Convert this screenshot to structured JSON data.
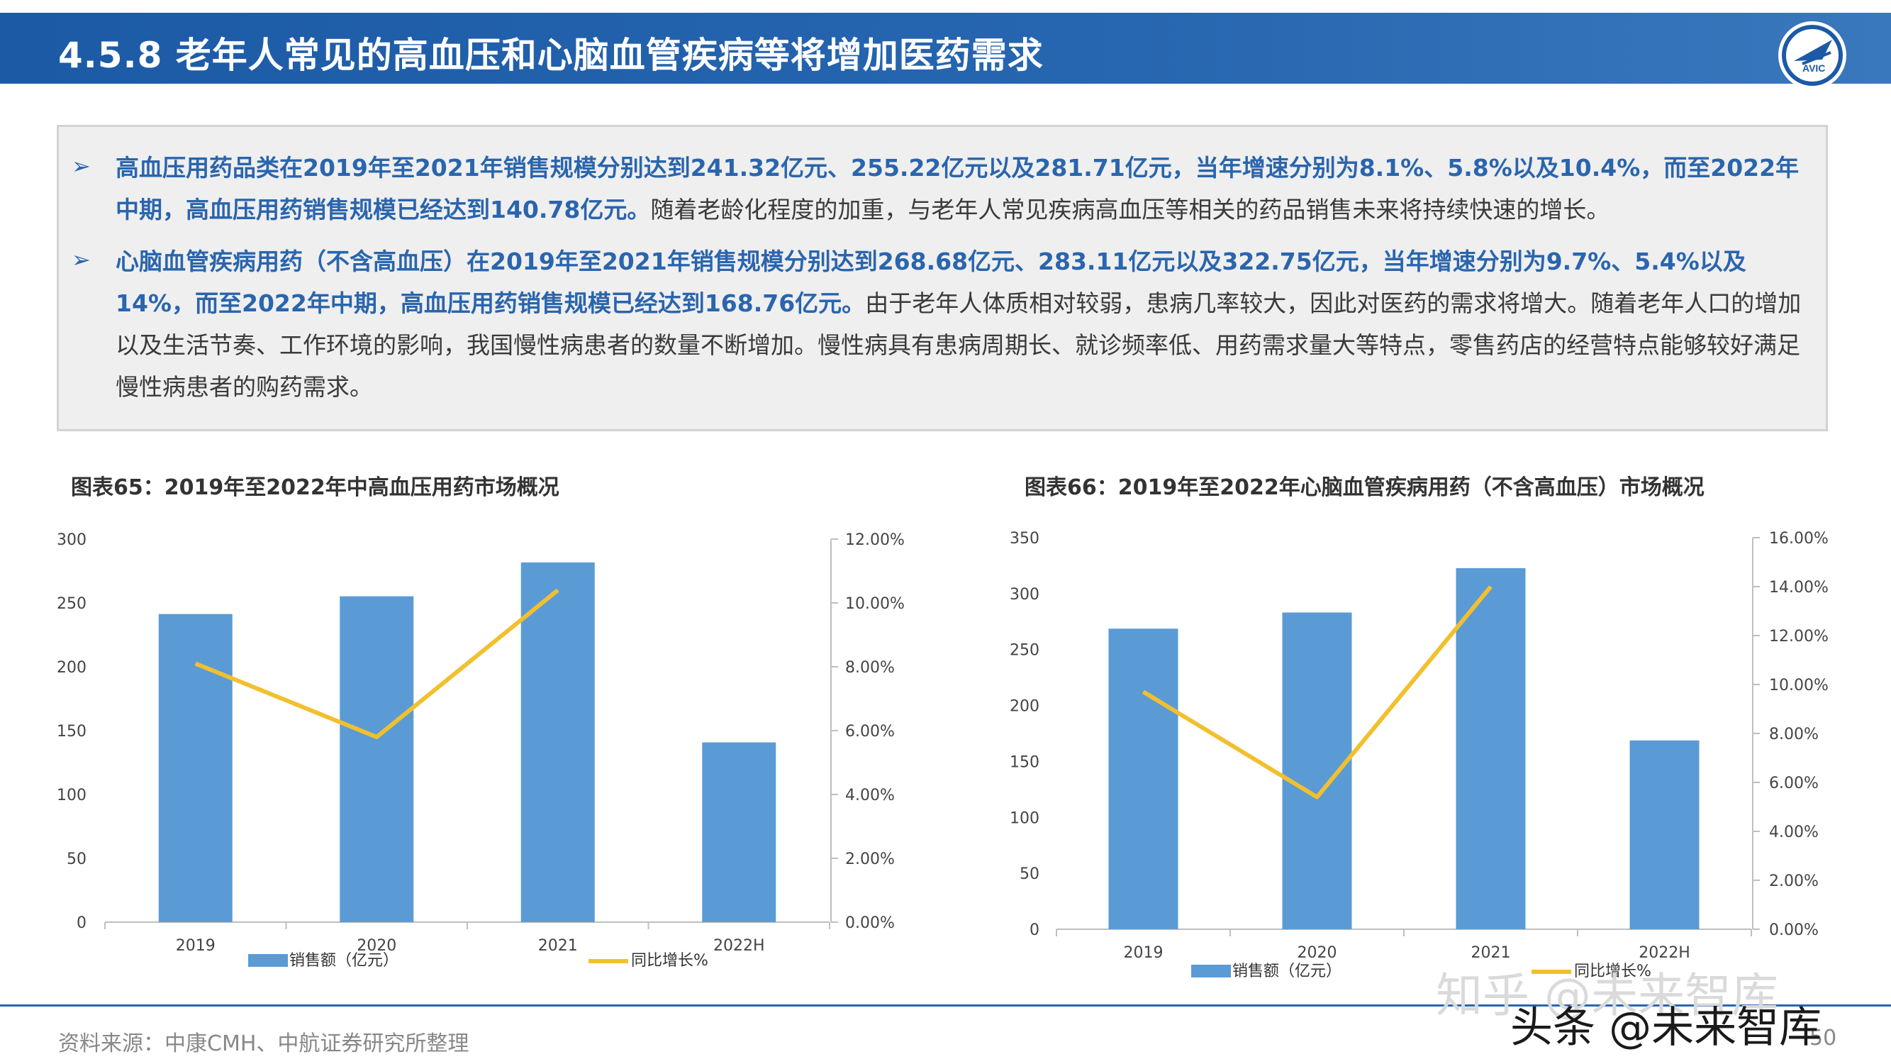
{
  "header": {
    "title": "4.5.8 老年人常见的高血压和心脑血管疾病等将增加医药需求",
    "logo_text": "AVIC"
  },
  "summary": {
    "bullet_symbol": "➢",
    "p1_hl": "高血压用药品类在2019年至2021年销售规模分别达到241.32亿元、255.22亿元以及281.71亿元，当年增速分别为8.1%、5.8%以及10.4%，而至2022年中期，高血压用药销售规模已经达到140.78亿元。",
    "p1_rest": "随着老龄化程度的加重，与老年人常见疾病高血压等相关的药品销售未来将持续快速的增长。",
    "p2_hl": "心脑血管疾病用药（不含高血压）在2019年至2021年销售规模分别达到268.68亿元、283.11亿元以及322.75亿元，当年增速分别为9.7%、5.4%以及14%，而至2022年中期，高血压用药销售规模已经达到168.76亿元。",
    "p2_rest": "由于老年人体质相对较弱，患病几率较大，因此对医药的需求将增大。随着老年人口的增加以及生活节奏、工作环境的影响，我国慢性病患者的数量不断增加。慢性病具有患病周期长、就诊频率低、用药需求量大等特点，零售药店的经营特点能够较好满足慢性病患者的购药需求。"
  },
  "colors": {
    "bar": "#5b9bd5",
    "line": "#f2c02e",
    "accent": "#2a65ad"
  },
  "chart_data": [
    {
      "type": "bar",
      "title": "图表65：2019年至2022年中高血压用药市场概况",
      "categories": [
        "2019",
        "2020",
        "2021",
        "2022H"
      ],
      "series": [
        {
          "name": "销售额（亿元）",
          "type": "bar",
          "axis": "left",
          "values": [
            241.32,
            255.22,
            281.71,
            140.78
          ]
        },
        {
          "name": "同比增长%",
          "type": "line",
          "axis": "right",
          "values": [
            8.1,
            5.8,
            10.4,
            null
          ]
        }
      ],
      "y_left": {
        "min": 0,
        "max": 300,
        "ticks": [
          "0",
          "50",
          "100",
          "150",
          "200",
          "250",
          "300"
        ]
      },
      "y_right": {
        "min": 0,
        "max": 12,
        "ticks": [
          "0.00%",
          "2.00%",
          "4.00%",
          "6.00%",
          "8.00%",
          "10.00%",
          "12.00%"
        ]
      },
      "legend": "bottom"
    },
    {
      "type": "bar",
      "title": "图表66：2019年至2022年心脑血管疾病用药（不含高血压）市场概况",
      "categories": [
        "2019",
        "2020",
        "2021",
        "2022H"
      ],
      "series": [
        {
          "name": "销售额（亿元）",
          "type": "bar",
          "axis": "left",
          "values": [
            268.68,
            283.11,
            322.75,
            168.76
          ]
        },
        {
          "name": "同比增长%",
          "type": "line",
          "axis": "right",
          "values": [
            9.7,
            5.4,
            14.0,
            null
          ]
        }
      ],
      "y_left": {
        "min": 0,
        "max": 350,
        "ticks": [
          "0",
          "50",
          "100",
          "150",
          "200",
          "250",
          "300",
          "350"
        ]
      },
      "y_right": {
        "min": 0,
        "max": 16,
        "ticks": [
          "0.00%",
          "2.00%",
          "4.00%",
          "6.00%",
          "8.00%",
          "10.00%",
          "12.00%",
          "14.00%",
          "16.00%"
        ]
      },
      "legend": "bottom"
    }
  ],
  "footer": {
    "source": "资料来源：中康CMH、中航证券研究所整理",
    "page": "50"
  },
  "watermark": {
    "zhihu": "知乎 @未来智库",
    "toutiao": "头条 @未来智库"
  }
}
